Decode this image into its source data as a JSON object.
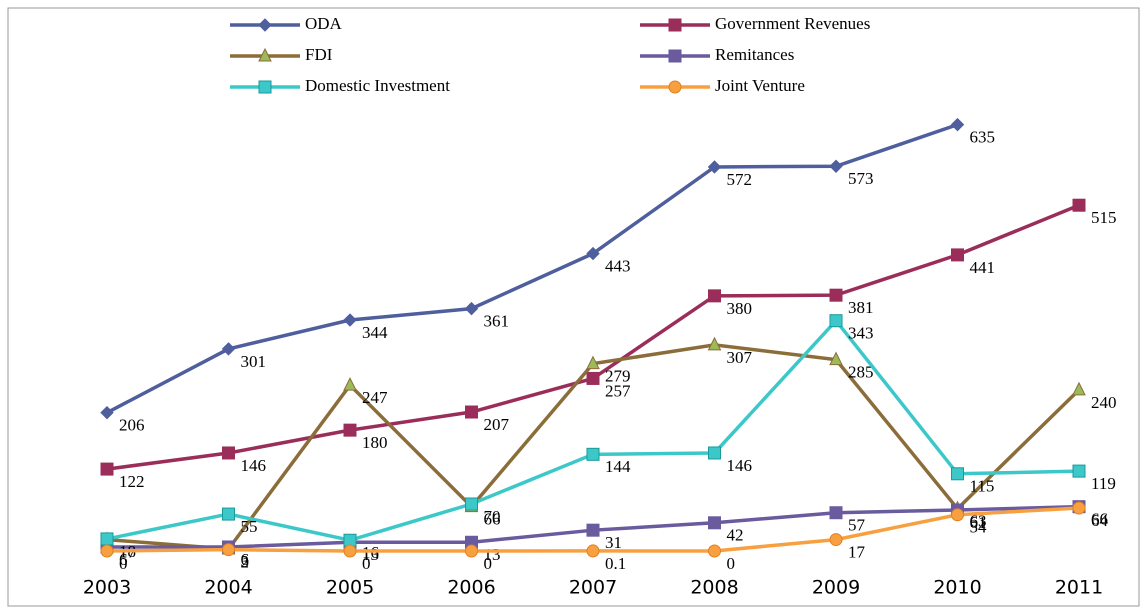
{
  "chart_data": {
    "type": "line",
    "categories": [
      "2003",
      "2004",
      "2005",
      "2006",
      "2007",
      "2008",
      "2009",
      "2010",
      "2011"
    ],
    "ylim": [
      0,
      700
    ],
    "legend": "top",
    "series": [
      {
        "name": "ODA",
        "color": "#4f5f9e",
        "marker": "diamond",
        "values": [
          206,
          301,
          344,
          361,
          443,
          572,
          573,
          635,
          null
        ]
      },
      {
        "name": "Government Revenues",
        "color": "#9b2d5a",
        "marker": "square",
        "values": [
          122,
          146,
          180,
          207,
          257,
          380,
          381,
          441,
          515
        ]
      },
      {
        "name": "FDI",
        "color": "#8b6d3a",
        "marker": "triangle",
        "values": [
          17,
          3,
          247,
          66,
          279,
          307,
          285,
          63,
          240
        ]
      },
      {
        "name": "Remitances",
        "color": "#6a5a9e",
        "marker": "square",
        "values": [
          6,
          6,
          13,
          13,
          31,
          42,
          57,
          61,
          66
        ]
      },
      {
        "name": "Domestic Investment",
        "color": "#3cc8c8",
        "marker": "xsquare",
        "values": [
          18,
          55,
          16,
          70,
          144,
          146,
          343,
          115,
          119
        ]
      },
      {
        "name": "Joint Venture",
        "color": "#f8a040",
        "marker": "circle",
        "values": [
          0,
          2,
          0,
          0,
          0.1,
          0,
          17,
          54,
          64
        ]
      }
    ]
  }
}
